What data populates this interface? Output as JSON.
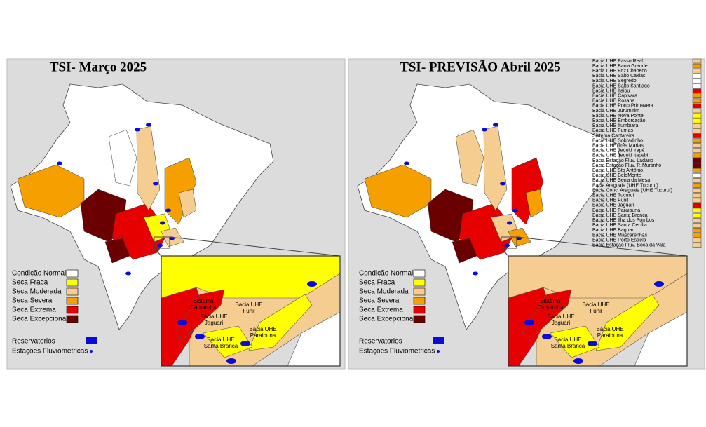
{
  "panels": [
    {
      "title": "TSI- Março 2025",
      "legend": [
        {
          "label": "Condição Normal",
          "color": "#ffffff"
        },
        {
          "label": "Seca Fraca",
          "color": "#ffff00"
        },
        {
          "label": "Seca Moderada",
          "color": "#f5cd90"
        },
        {
          "label": "Seca Severa",
          "color": "#f5a000"
        },
        {
          "label": "Seca Extrema",
          "color": "#e60000"
        },
        {
          "label": "Seca Excepcional",
          "color": "#6b0000"
        }
      ],
      "symbols": [
        "Reservatorios",
        "Estações Fluviométricas"
      ],
      "inset_labels": [
        [
          "Sistema",
          "Cantareira"
        ],
        [
          "Bacia UHE",
          "Funil"
        ],
        [
          "Bacia UHE",
          "Jaguari"
        ],
        [
          "Bacia UHE",
          "Paraibuna"
        ],
        [
          "Bacia UHE",
          "Santa Branca"
        ]
      ]
    },
    {
      "title": "TSI- PREVISÃO Abril 2025",
      "legend": [
        {
          "label": "Condição Normal",
          "color": "#ffffff"
        },
        {
          "label": "Seca Fraca",
          "color": "#ffff00"
        },
        {
          "label": "Seca Moderada",
          "color": "#f5cd90"
        },
        {
          "label": "Seca Severa",
          "color": "#f5a000"
        },
        {
          "label": "Seca Extrema",
          "color": "#e60000"
        },
        {
          "label": "Seca Excepcional",
          "color": "#6b0000"
        }
      ],
      "symbols": [
        "Reservatorios",
        "Estações Fluviométricas"
      ],
      "inset_labels": [
        [
          "Sistema",
          "Cantareira"
        ],
        [
          "Bacia UHE",
          "Funil"
        ],
        [
          "Bacia UHE",
          "Jaguari"
        ],
        [
          "Bacia UHE",
          "Paraibuna"
        ],
        [
          "Bacia UHE",
          "Santa Branca"
        ]
      ],
      "basin_list": [
        {
          "label": "Bacia UHE Passo Real",
          "color": "#f5cd90"
        },
        {
          "label": "Bacia UHE Barra Grande",
          "color": "#f5a000"
        },
        {
          "label": "Bacia UHE Foz Chapecó",
          "color": "#f5cd90"
        },
        {
          "label": "Bacia UHE Salto Caxias",
          "color": "#ffffff"
        },
        {
          "label": "Bacia UHE Segredo",
          "color": "#ffffff"
        },
        {
          "label": "Bacia UHE Salto Santiago",
          "color": "#ffffff"
        },
        {
          "label": "Bacia UHE Itaipu",
          "color": "#e60000"
        },
        {
          "label": "Bacia UHE Capivara",
          "color": "#f5a000"
        },
        {
          "label": "Bacia UHE Rosana",
          "color": "#f5a000"
        },
        {
          "label": "Bacia UHE Porto Primavera",
          "color": "#e60000"
        },
        {
          "label": "Bacia UHE Jurumirim",
          "color": "#f5cd90"
        },
        {
          "label": "Bacia UHE Nova Ponte",
          "color": "#ffff00"
        },
        {
          "label": "Bacia UHE Emborcação",
          "color": "#ffff00"
        },
        {
          "label": "Bacia UHE Itumbiara",
          "color": "#f5cd90"
        },
        {
          "label": "Bacia UHE Furnas",
          "color": "#f5cd90"
        },
        {
          "label": "Sistema Cantareira",
          "color": "#e60000"
        },
        {
          "label": "Bacia UHE Sobradinho",
          "color": "#f5a000"
        },
        {
          "label": "Bacia UHE Três Marias",
          "color": "#f5cd90"
        },
        {
          "label": "Bacia UHE Jequiti Irapé",
          "color": "#f5cd90"
        },
        {
          "label": "Bacia UHE Jequiti Itapebi",
          "color": "#f5a000"
        },
        {
          "label": "Bacia Estação Fluv. Ladário",
          "color": "#6b0000"
        },
        {
          "label": "Bacia Estação Fluv. P. Murtinho",
          "color": "#6b0000"
        },
        {
          "label": "Bacia UHE Sto Antônio",
          "color": "#f5a000"
        },
        {
          "label": "Bacia UHE BeloMonte",
          "color": "#ffffff"
        },
        {
          "label": "Bacia UHE Serra da Mesa",
          "color": "#f5cd90"
        },
        {
          "label": "Bacia Araguaia (UHE Tucuruí)",
          "color": "#f5a000"
        },
        {
          "label": "Bacia Conc. Araguaia (UHE Tucuruí)",
          "color": "#f5cd90"
        },
        {
          "label": "Bacia UHE Tucuruí",
          "color": "#f5cd90"
        },
        {
          "label": "Bacia UHE Funil",
          "color": "#f5cd90"
        },
        {
          "label": "Bacia UHE Jaguarí",
          "color": "#e60000"
        },
        {
          "label": "Bacia UHE Paraibuna",
          "color": "#ffff00"
        },
        {
          "label": "Bacia UHE Santa Branca",
          "color": "#ffff00"
        },
        {
          "label": "Bacia UHE Ilha dos Pombos",
          "color": "#f5cd90"
        },
        {
          "label": "Bacia UHE Santa Cecília",
          "color": "#f5cd90"
        },
        {
          "label": "Bacia UHE Baguari",
          "color": "#f5a000"
        },
        {
          "label": "Bacia UHE Mascarenhas",
          "color": "#f5a000"
        },
        {
          "label": "Bacia UHE Porto Estrela",
          "color": "#f5cd90"
        },
        {
          "label": "Bacia Estação Fluv. Boca da Vala",
          "color": "#f5cd90"
        }
      ]
    }
  ]
}
